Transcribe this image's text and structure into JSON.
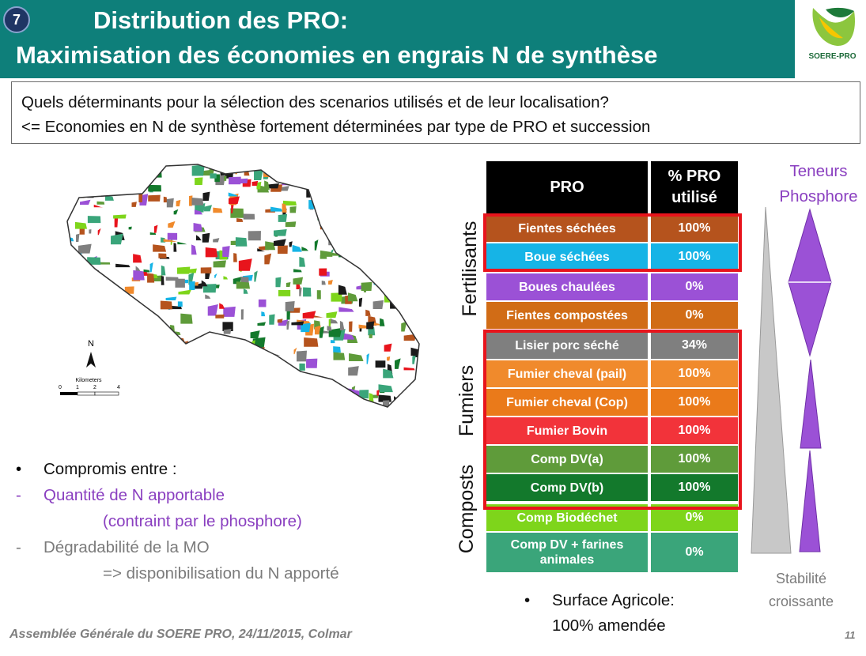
{
  "slide_number": "7",
  "title_line1": "Distribution des PRO:",
  "title_line2": "Maximisation des économies en engrais N de synthèse",
  "logo_text": "SOERE-PRO",
  "question_line1": "Quels déterminants pour la sélection des scenarios utilisés et de leur localisation?",
  "question_line2": "<= Economies en N de synthèse fortement déterminées par type de PRO et succession",
  "map": {
    "north_label": "N",
    "scale_unit": "Kilometers",
    "scale_ticks": [
      "0",
      "1",
      "2",
      "4"
    ]
  },
  "table": {
    "header_pro": "PRO",
    "header_pct_line1": "% PRO",
    "header_pct_line2": "utilisé",
    "rows": [
      {
        "pro": "Fientes séchées",
        "pct": "100%",
        "color": "#b5531d",
        "pct_color": "#b5531d"
      },
      {
        "pro": "Boue séchées",
        "pct": "100%",
        "color": "#16b4e6",
        "pct_color": "#16b4e6"
      },
      {
        "pro": "Boues chaulées",
        "pct": "0%",
        "color": "#9b51d6",
        "pct_color": "#9b51d6"
      },
      {
        "pro": "Fientes compostées",
        "pct": "0%",
        "color": "#d16c16",
        "pct_color": "#d16c16"
      },
      {
        "pro": "Lisier porc séché",
        "pct": "34%",
        "color": "#7f7f7f",
        "pct_color": "#7f7f7f"
      },
      {
        "pro": "Fumier cheval (pail)",
        "pct": "100%",
        "color": "#f08a2c",
        "pct_color": "#f08a2c"
      },
      {
        "pro": "Fumier cheval (Cop)",
        "pct": "100%",
        "color": "#ea7a1a",
        "pct_color": "#ea7a1a"
      },
      {
        "pro": "Fumier Bovin",
        "pct": "100%",
        "color": "#f2333a",
        "pct_color": "#f2333a"
      },
      {
        "pro": "Comp DV(a)",
        "pct": "100%",
        "color": "#5f9b3a",
        "pct_color": "#5f9b3a"
      },
      {
        "pro": "Comp DV(b)",
        "pct": "100%",
        "color": "#13792c",
        "pct_color": "#13792c"
      },
      {
        "pro": "Comp Biodéchet",
        "pct": "0%",
        "color": "#7ed51b",
        "pct_color": "#7ed51b"
      },
      {
        "pro": "Comp DV + farines animales",
        "pct": "0%",
        "color": "#3aa57a",
        "pct_color": "#3aa57a"
      }
    ]
  },
  "group_labels": {
    "fertilisants": "Fertilisants",
    "fumiers": "Fumiers",
    "composts": "Composts"
  },
  "teneurs_line1": "Teneurs",
  "teneurs_line2": "Phosphore",
  "stabilite_line1": "Stabilité",
  "stabilite_line2": "croissante",
  "bullets": {
    "b1": "Compromis entre :",
    "b2": "Quantité de N apportable",
    "b3": "(contraint par le phosphore)",
    "b4": "Dégradabilité de la MO",
    "b5": "=> disponibilisation du N apporté",
    "bullet_symbol": "•",
    "dash_symbol": "-"
  },
  "surface_line1": "Surface Agricole:",
  "surface_line2": "100% amendée",
  "footer": "Assemblée Générale du SOERE PRO, 24/11/2015, Colmar",
  "page_number": "11",
  "colors": {
    "header_bg": "#0e7f7a",
    "purple": "#8a3fc0",
    "grey_text": "#7b7b7b",
    "red_frame": "#e8141c"
  }
}
